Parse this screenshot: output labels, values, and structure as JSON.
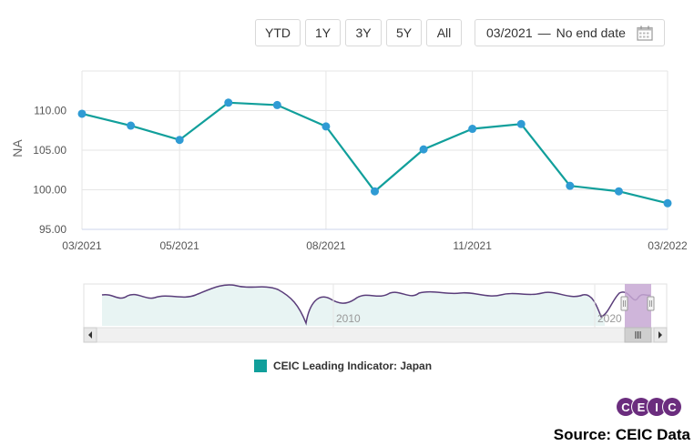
{
  "toolbar": {
    "buttons": [
      "YTD",
      "1Y",
      "3Y",
      "5Y",
      "All"
    ],
    "date_start": "03/2021",
    "date_separator": "—",
    "date_end": "No end date",
    "calendar_icon": "calendar-icon"
  },
  "chart_data": {
    "type": "line",
    "ylabel": "NA",
    "x": [
      "03/2021",
      "04/2021",
      "05/2021",
      "06/2021",
      "07/2021",
      "08/2021",
      "09/2021",
      "10/2021",
      "11/2021",
      "12/2021",
      "01/2022",
      "02/2022",
      "03/2022"
    ],
    "x_tick_labels": [
      "03/2021",
      "05/2021",
      "08/2021",
      "11/2021",
      "03/2022"
    ],
    "y_ticks": [
      "110.00",
      "105.00",
      "100.00",
      "95.00"
    ],
    "ylim": [
      95,
      115
    ],
    "grid": true,
    "series": [
      {
        "name": "CEIC Leading Indicator: Japan",
        "color": "#119f9b",
        "values": [
          109.6,
          108.1,
          106.3,
          111.0,
          110.7,
          108.0,
          99.8,
          105.1,
          107.7,
          108.3,
          100.5,
          99.8,
          98.3
        ]
      }
    ]
  },
  "navigator": {
    "year_labels": [
      "2010",
      "2020"
    ],
    "scroll_left_icon": "arrow-left-icon",
    "scroll_right_icon": "arrow-right-icon",
    "grip_icon": "grip-icon"
  },
  "legend": {
    "label": "CEIC Leading Indicator: Japan",
    "color": "#119f9b"
  },
  "logo": {
    "letters": [
      "C",
      "E",
      "I",
      "C"
    ]
  },
  "source": "Source: CEIC Data"
}
